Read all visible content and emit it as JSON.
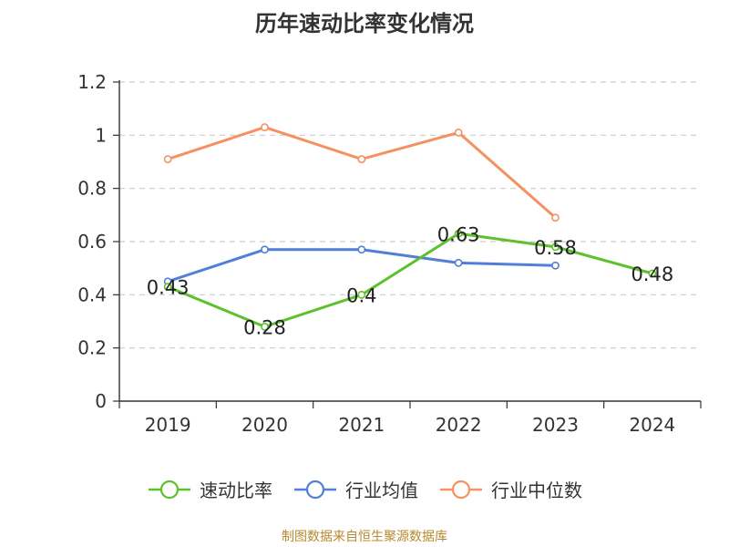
{
  "title": "历年速动比率变化情况",
  "source": "制图数据来自恒生聚源数据库",
  "colors": {
    "axis": "#333333",
    "grid": "#cccccc"
  },
  "chart_data": {
    "type": "line",
    "title": "历年速动比率变化情况",
    "categories": [
      "2019",
      "2020",
      "2021",
      "2022",
      "2023",
      "2024"
    ],
    "ylim": [
      0,
      1.2
    ],
    "yticks": [
      0,
      0.2,
      0.4,
      0.6,
      0.8,
      1,
      1.2
    ],
    "ytick_labels": [
      "0",
      "0.2",
      "0.4",
      "0.6",
      "0.8",
      "1",
      "1.2"
    ],
    "grid": true,
    "legend_position": "bottom",
    "series": [
      {
        "name": "速动比率",
        "color": "#5cc12c",
        "values": [
          0.43,
          0.28,
          0.4,
          0.63,
          0.58,
          0.48
        ],
        "labels": [
          "0.43",
          "0.28",
          "0.4",
          "0.63",
          "0.58",
          "0.48"
        ]
      },
      {
        "name": "行业均值",
        "color": "#4f7fd8",
        "values": [
          0.45,
          0.57,
          0.57,
          0.52,
          0.51,
          null
        ]
      },
      {
        "name": "行业中位数",
        "color": "#f59161",
        "values": [
          0.91,
          1.03,
          0.91,
          1.01,
          0.69,
          null
        ]
      }
    ]
  }
}
